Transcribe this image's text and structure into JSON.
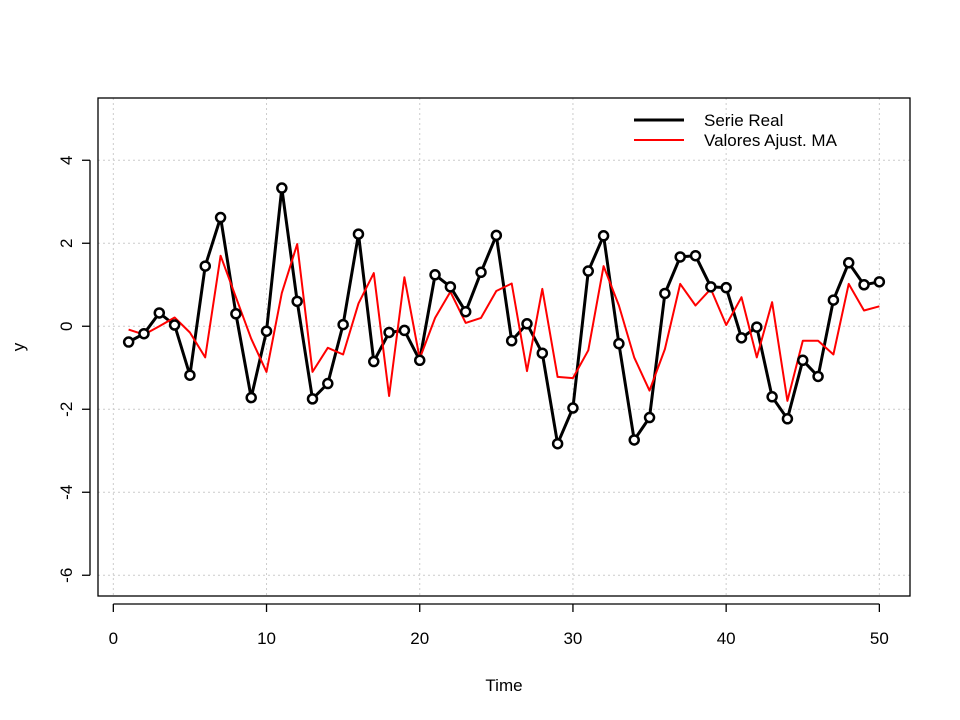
{
  "chart_data": {
    "type": "line",
    "title": "",
    "xlabel": "Time",
    "ylabel": "y",
    "xlim": [
      -1,
      52
    ],
    "ylim": [
      -6.5,
      5.5
    ],
    "xticks": [
      0,
      10,
      20,
      30,
      40,
      50
    ],
    "yticks": [
      -6,
      -4,
      -2,
      0,
      2,
      4
    ],
    "xtick_labels": [
      "0",
      "10",
      "20",
      "30",
      "40",
      "50"
    ],
    "ytick_labels": [
      "-6",
      "-4",
      "-2",
      "0",
      "2",
      "4"
    ],
    "grid": true,
    "legend_position": "top-right",
    "x": [
      1,
      2,
      3,
      4,
      5,
      6,
      7,
      8,
      9,
      10,
      11,
      12,
      13,
      14,
      15,
      16,
      17,
      18,
      19,
      20,
      21,
      22,
      23,
      24,
      25,
      26,
      27,
      28,
      29,
      30,
      31,
      32,
      33,
      34,
      35,
      36,
      37,
      38,
      39,
      40,
      41,
      42,
      43,
      44,
      45,
      46,
      47,
      48,
      49,
      50
    ],
    "series": [
      {
        "name": "Serie Real",
        "color": "#000000",
        "markers": true,
        "values": [
          -0.38,
          -0.18,
          0.32,
          0.03,
          -1.18,
          1.45,
          2.62,
          0.3,
          -1.72,
          -0.12,
          3.33,
          0.6,
          -1.75,
          -1.38,
          0.04,
          2.22,
          -0.85,
          -0.15,
          -0.1,
          -0.82,
          1.24,
          0.95,
          0.35,
          1.3,
          2.19,
          -0.35,
          0.06,
          -0.65,
          -2.83,
          -1.97,
          1.33,
          2.18,
          -0.42,
          -2.74,
          -2.2,
          0.79,
          1.67,
          1.7,
          0.95,
          0.93,
          -0.28,
          -0.02,
          -1.7,
          -2.23,
          -0.82,
          -1.21,
          0.63,
          1.53,
          1.0,
          1.07
        ]
      },
      {
        "name": "Valores Ajust. MA",
        "color": "#ff0000",
        "markers": false,
        "values": [
          -0.08,
          -0.2,
          0.0,
          0.21,
          -0.15,
          -0.75,
          1.7,
          0.7,
          -0.3,
          -1.1,
          0.8,
          1.98,
          -1.1,
          -0.52,
          -0.68,
          0.55,
          1.28,
          -1.68,
          1.18,
          -0.78,
          0.2,
          0.83,
          0.08,
          0.2,
          0.85,
          1.03,
          -1.08,
          0.9,
          -1.22,
          -1.25,
          -0.58,
          1.45,
          0.5,
          -0.75,
          -1.55,
          -0.55,
          1.02,
          0.5,
          0.9,
          0.03,
          0.7,
          -0.75,
          0.58,
          -1.8,
          -0.35,
          -0.35,
          -0.68,
          1.02,
          0.38,
          0.48
        ]
      }
    ]
  }
}
